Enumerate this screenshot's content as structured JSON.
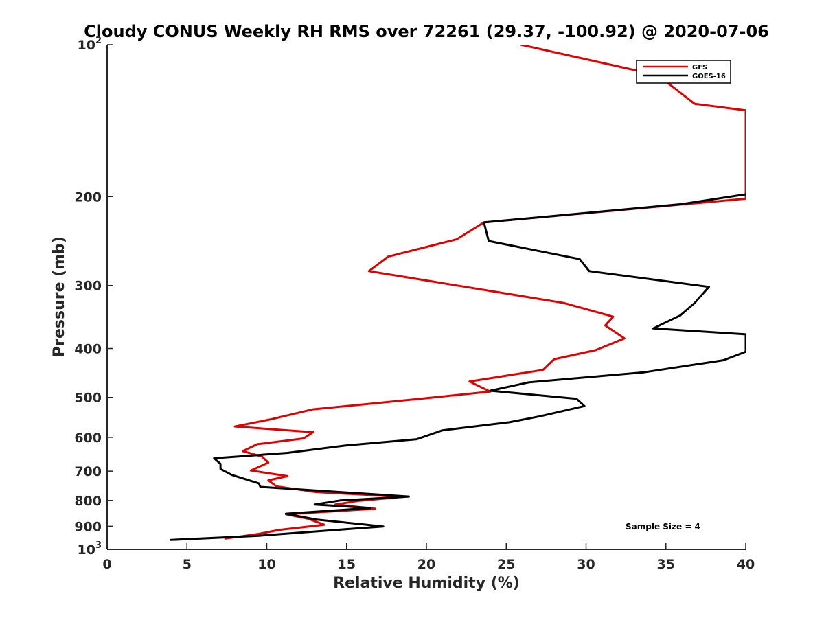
{
  "chart_data": {
    "type": "line",
    "title": "Cloudy CONUS Weekly RH RMS over 72261 (29.37, -100.92) @ 2020-07-06",
    "xlabel": "Relative Humidity (%)",
    "ylabel": "Pressure (mb)",
    "xlim": [
      0,
      40
    ],
    "ylim": [
      100,
      1000
    ],
    "yscale": "log",
    "y_reversed": true,
    "x_ticks": [
      "0",
      "5",
      "10",
      "15",
      "20",
      "25",
      "30",
      "35",
      "40"
    ],
    "y_ticks": [
      {
        "value": 100,
        "base": "10",
        "exp": "2"
      },
      {
        "value": 200,
        "label": "200"
      },
      {
        "value": 300,
        "label": "300"
      },
      {
        "value": 400,
        "label": "400"
      },
      {
        "value": 500,
        "label": "500"
      },
      {
        "value": 600,
        "label": "600"
      },
      {
        "value": 700,
        "label": "700"
      },
      {
        "value": 800,
        "label": "800"
      },
      {
        "value": 900,
        "label": "900"
      },
      {
        "value": 1000,
        "base": "10",
        "exp": "3"
      }
    ],
    "legend_position": "top-right",
    "annotation": "Sample Size = 4",
    "series": [
      {
        "name": "GFS",
        "color": "#e00000",
        "points": [
          [
            25.9,
            100
          ],
          [
            34.5,
            115
          ],
          [
            36.8,
            131
          ],
          [
            40.0,
            135
          ],
          [
            40.0,
            202
          ],
          [
            23.6,
            225
          ],
          [
            21.9,
            243
          ],
          [
            17.6,
            263
          ],
          [
            16.4,
            281
          ],
          [
            21.9,
            300
          ],
          [
            28.6,
            325
          ],
          [
            31.7,
            346
          ],
          [
            31.2,
            360
          ],
          [
            32.4,
            382
          ],
          [
            30.6,
            403
          ],
          [
            28.0,
            420
          ],
          [
            27.3,
            441
          ],
          [
            22.7,
            465
          ],
          [
            24.0,
            487
          ],
          [
            19.4,
            504
          ],
          [
            12.9,
            528
          ],
          [
            10.2,
            553
          ],
          [
            8.0,
            571
          ],
          [
            12.9,
            586
          ],
          [
            12.3,
            603
          ],
          [
            9.4,
            619
          ],
          [
            8.5,
            639
          ],
          [
            9.7,
            655
          ],
          [
            10.1,
            673
          ],
          [
            9.0,
            698
          ],
          [
            11.3,
            716
          ],
          [
            10.1,
            730
          ],
          [
            10.6,
            750
          ],
          [
            13.1,
            770
          ],
          [
            18.6,
            787
          ],
          [
            15.8,
            801
          ],
          [
            14.3,
            815
          ],
          [
            16.8,
            831
          ],
          [
            11.2,
            852
          ],
          [
            12.6,
            870
          ],
          [
            13.6,
            894
          ],
          [
            10.8,
            915
          ],
          [
            9.5,
            932
          ],
          [
            7.4,
            952
          ]
        ]
      },
      {
        "name": "GOES-16",
        "color": "#000000",
        "points": [
          [
            40.0,
            198
          ],
          [
            36.0,
            207
          ],
          [
            23.6,
            225
          ],
          [
            23.9,
            245
          ],
          [
            29.6,
            266
          ],
          [
            30.2,
            281
          ],
          [
            37.7,
            302
          ],
          [
            36.8,
            325
          ],
          [
            35.9,
            344
          ],
          [
            34.2,
            365
          ],
          [
            40.0,
            375
          ],
          [
            40.0,
            406
          ],
          [
            38.6,
            422
          ],
          [
            33.6,
            446
          ],
          [
            26.4,
            467
          ],
          [
            24.0,
            485
          ],
          [
            29.4,
            503
          ],
          [
            29.9,
            520
          ],
          [
            27.1,
            545
          ],
          [
            25.2,
            560
          ],
          [
            21.0,
            581
          ],
          [
            19.4,
            605
          ],
          [
            14.9,
            623
          ],
          [
            11.3,
            644
          ],
          [
            6.7,
            660
          ],
          [
            7.1,
            677
          ],
          [
            7.1,
            693
          ],
          [
            7.8,
            712
          ],
          [
            9.5,
            740
          ],
          [
            9.6,
            752
          ],
          [
            18.9,
            786
          ],
          [
            14.6,
            800
          ],
          [
            13.0,
            815
          ],
          [
            16.5,
            828
          ],
          [
            11.2,
            850
          ],
          [
            13.1,
            873
          ],
          [
            17.3,
            901
          ],
          [
            13.2,
            921
          ],
          [
            9.5,
            940
          ],
          [
            4.0,
            958
          ]
        ]
      }
    ]
  }
}
